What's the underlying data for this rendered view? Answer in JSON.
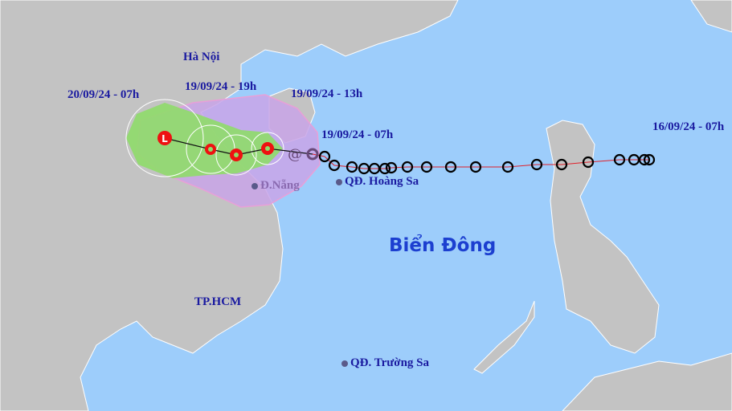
{
  "map": {
    "sea_label": "Biển Đông",
    "cities": [
      {
        "name": "Hà Nội"
      },
      {
        "name": "Đ.Nẵng"
      },
      {
        "name": "TP.HCM"
      },
      {
        "name": "QĐ. Hoàng Sa"
      },
      {
        "name": "QĐ. Trường Sa"
      }
    ],
    "time_labels": [
      "20/09/24 - 07h",
      "19/09/24 - 19h",
      "19/09/24 - 13h",
      "19/09/24 - 07h",
      "16/09/24 - 07h"
    ],
    "forecast_marker_text": "L",
    "colors": {
      "sea": "#9dcdfb",
      "land": "#c3c3c3",
      "cone_purple": "#c9a5e8",
      "cone_green": "#8fdc6a",
      "storm_red": "#ee1111",
      "track_line": "#e0202a"
    }
  }
}
